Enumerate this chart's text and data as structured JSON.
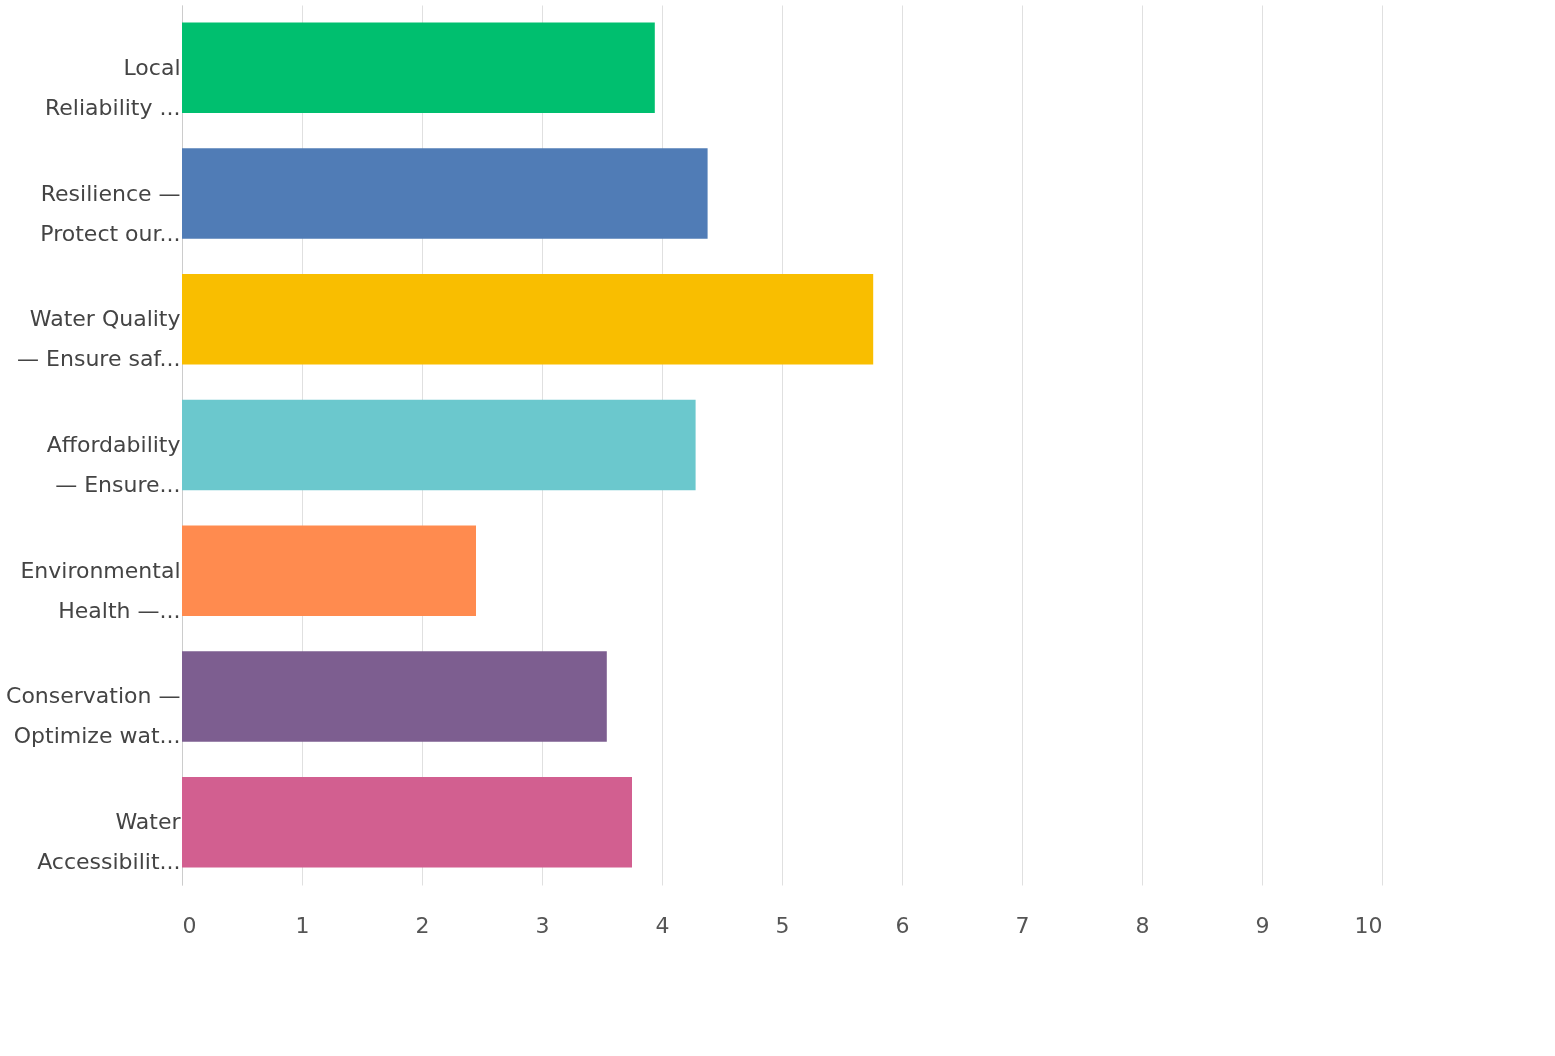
{
  "chart_data": {
    "type": "bar",
    "orientation": "horizontal",
    "categories": [
      "Local\nReliability ...",
      "Resilience —\nProtect our...",
      "Water Quality\n— Ensure saf...",
      "Affordability\n— Ensure...",
      "Environmental\nHealth —...",
      "Conservation —\nOptimize wat...",
      "Water\nAccessibilit..."
    ],
    "values": [
      3.94,
      4.38,
      5.76,
      4.28,
      2.45,
      3.54,
      3.75
    ],
    "colors": [
      "#00bf6f",
      "#507cb6",
      "#f9be00",
      "#6bc8cd",
      "#ff8b4f",
      "#7d5e90",
      "#d25f90"
    ],
    "xlim": [
      0,
      10
    ],
    "xticks": [
      0,
      1,
      2,
      3,
      4,
      5,
      6,
      7,
      8,
      9,
      10
    ],
    "grid": "x"
  }
}
